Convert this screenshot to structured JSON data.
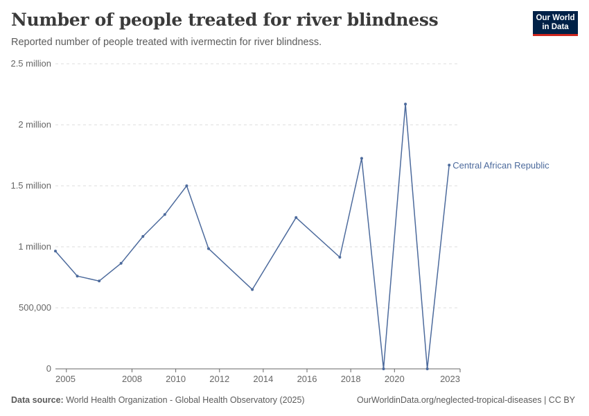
{
  "header": {
    "title": "Number of people treated for river blindness",
    "subtitle": "Reported number of people treated with ivermectin for river blindness."
  },
  "logo": {
    "line1": "Our World",
    "line2": "in Data"
  },
  "footer": {
    "source_label": "Data source:",
    "source_text": "World Health Organization - Global Health Observatory (2025)",
    "url_text": "OurWorldinData.org/neglected-tropical-diseases | CC BY"
  },
  "colors": {
    "series": "#4c6a9c",
    "grid": "#dddddd",
    "axis": "#666666"
  },
  "chart_data": {
    "type": "line",
    "title": "Number of people treated for river blindness",
    "xlabel": "",
    "ylabel": "",
    "xlim": [
      2004.5,
      2023
    ],
    "ylim": [
      0,
      2500000
    ],
    "yticks": [
      0,
      500000,
      1000000,
      1500000,
      2000000,
      2500000
    ],
    "ytick_labels": [
      "0",
      "500,000",
      "1 million",
      "1.5 million",
      "2 million",
      "2.5 million"
    ],
    "xticks": [
      2005,
      2008,
      2010,
      2012,
      2014,
      2016,
      2018,
      2020,
      2023
    ],
    "xtick_labels": [
      "2005",
      "2008",
      "2010",
      "2012",
      "2014",
      "2016",
      "2018",
      "2020",
      "2023"
    ],
    "grid": true,
    "series": [
      {
        "name": "Central African Republic",
        "x": [
          2004.5,
          2005.5,
          2006.5,
          2007.5,
          2008.5,
          2009.5,
          2010.5,
          2011.5,
          2013.5,
          2015.5,
          2017.5,
          2018.5,
          2019.5,
          2020.5,
          2021.5,
          2022.5
        ],
        "values": [
          965000,
          760000,
          720000,
          865000,
          1085000,
          1265000,
          1500000,
          985000,
          650000,
          1240000,
          915000,
          1725000,
          0,
          2170000,
          0,
          1670000
        ]
      }
    ]
  }
}
